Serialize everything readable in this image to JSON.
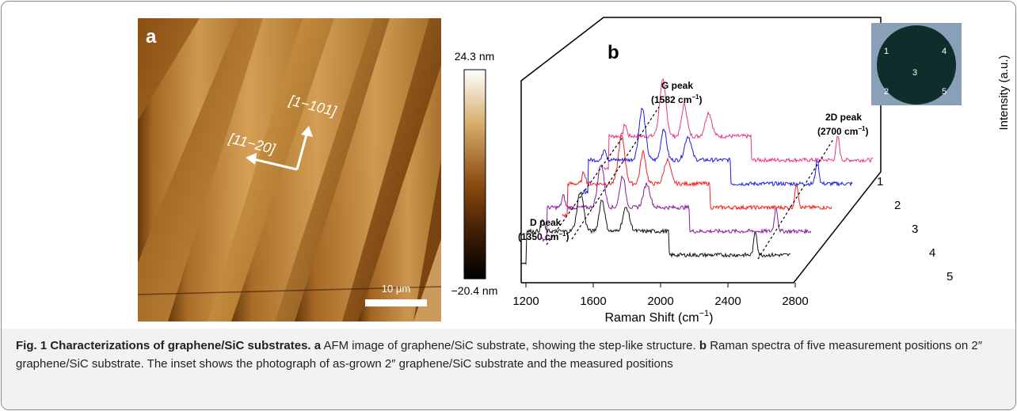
{
  "panel_a": {
    "label": "a",
    "scale_bar": "10 μm",
    "direction_1": "[11−20]",
    "direction_2": "[1−101]",
    "colorbar_max": "24.3 nm",
    "colorbar_min": "−20.4 nm"
  },
  "panel_b": {
    "label": "b",
    "x_axis_label": {
      "text": "Raman Shift (cm",
      "sup": "−1",
      "end": ")"
    },
    "x_ticks": [
      "1200",
      "1600",
      "2000",
      "2400",
      "2800"
    ],
    "y_axis_label": "Intensity (a.u.)",
    "spectrum_labels": [
      "1",
      "2",
      "3",
      "4",
      "5"
    ],
    "d_peak": {
      "name": "D peak",
      "text": "(1350 cm",
      "sup": "−1",
      "end": ")"
    },
    "g_peak": {
      "name": "G peak",
      "text": "(1582 cm",
      "sup": "−1",
      "end": ")"
    },
    "peak_2d": {
      "name": "2D peak",
      "text": "(2700 cm",
      "sup": "−1",
      "end": ")"
    },
    "inset_labels": [
      "1",
      "4",
      "3",
      "2",
      "5"
    ]
  },
  "caption": {
    "figure": "Fig. 1 Characterizations of graphene/SiC substrates.",
    "a_label": "a",
    "a_text": "AFM image of graphene/SiC substrate, showing the step-like structure.",
    "b_label": "b",
    "b_text": "Raman spectra of five measurement positions on 2″ graphene/SiC substrate. The inset shows the photograph of as-grown 2″ graphene/SiC substrate and the measured positions"
  }
}
